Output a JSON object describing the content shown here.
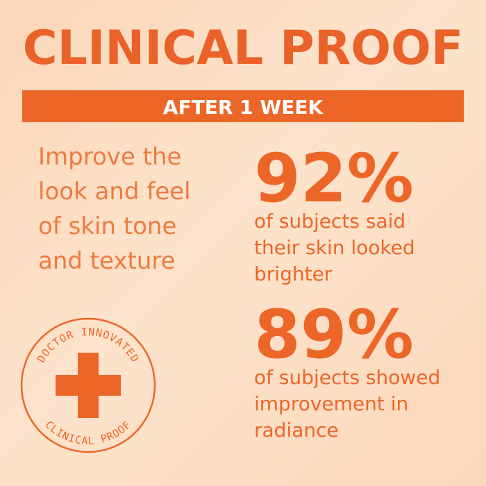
{
  "header": {
    "title": "CLINICAL PROOF",
    "banner": "AFTER 1 WEEK"
  },
  "claim": {
    "lines": [
      "Improve the",
      "look and feel",
      "of skin tone",
      "and texture"
    ]
  },
  "stats": [
    {
      "value": "92%",
      "lines": [
        "of subjects said",
        "their skin looked",
        "brighter"
      ]
    },
    {
      "value": "89%",
      "lines": [
        "of subjects showed",
        "improvement in",
        "radiance"
      ]
    }
  ],
  "badge": {
    "top": "DOCTOR INNOVATED",
    "bottom": "CLINICAL PROOF"
  }
}
